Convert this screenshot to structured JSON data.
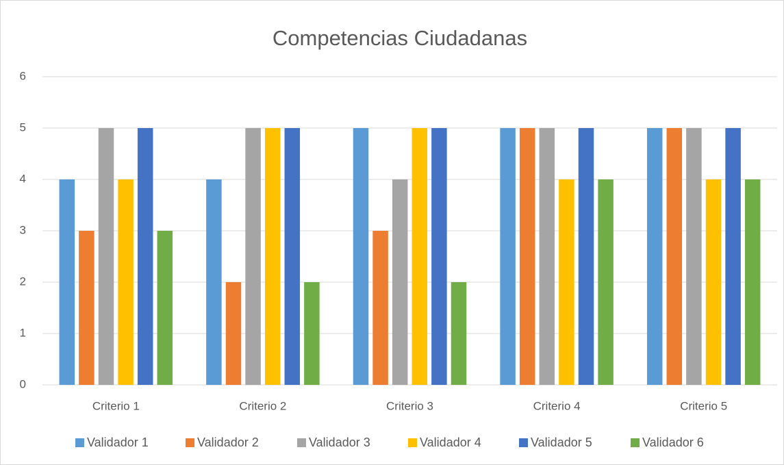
{
  "chart_data": {
    "type": "bar",
    "title": "Competencias Ciudadanas",
    "categories": [
      "Criterio 1",
      "Criterio 2",
      "Criterio 3",
      "Criterio 4",
      "Criterio 5"
    ],
    "series": [
      {
        "name": "Validador 1",
        "color": "#5b9bd5",
        "values": [
          4,
          4,
          5,
          5,
          5
        ]
      },
      {
        "name": "Validador 2",
        "color": "#ed7d31",
        "values": [
          3,
          2,
          3,
          5,
          5
        ]
      },
      {
        "name": "Validador 3",
        "color": "#a5a5a5",
        "values": [
          5,
          5,
          4,
          5,
          5
        ]
      },
      {
        "name": "Validador 4",
        "color": "#ffc000",
        "values": [
          4,
          5,
          5,
          4,
          4
        ]
      },
      {
        "name": "Validador 5",
        "color": "#4472c4",
        "values": [
          5,
          5,
          5,
          5,
          5
        ]
      },
      {
        "name": "Validador 6",
        "color": "#70ad47",
        "values": [
          3,
          2,
          2,
          4,
          4
        ]
      }
    ],
    "ylim": [
      0,
      6
    ],
    "yticks": [
      0,
      1,
      2,
      3,
      4,
      5,
      6
    ],
    "grid": true,
    "legend": "bottom"
  }
}
